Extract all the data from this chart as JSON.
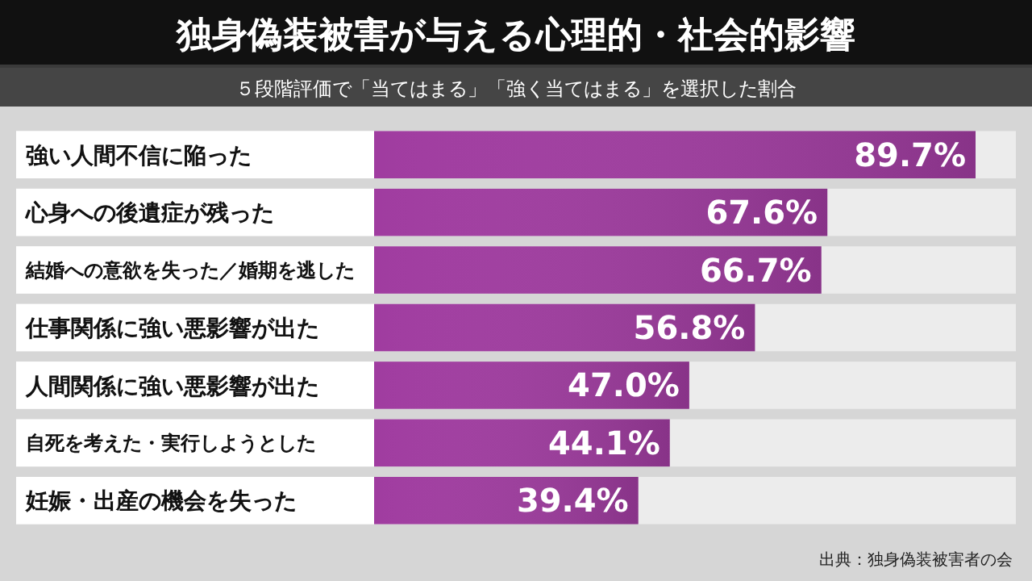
{
  "chart_data": {
    "type": "bar",
    "orientation": "horizontal",
    "title": "独身偽装被害が与える心理的・社会的影響",
    "subtitle": "５段階評価で「当てはまる」「強く当てはまる」を選択した割合",
    "categories": [
      "強い人間不信に陥った",
      "心身への後遺症が残った",
      "結婚への意欲を失った／婚期を逃した",
      "仕事関係に強い悪影響が出た",
      "人間関係に強い悪影響が出た",
      "自死を考えた・実行しようとした",
      "妊娠・出産の機会を失った"
    ],
    "values": [
      89.7,
      67.6,
      66.7,
      56.8,
      47.0,
      44.1,
      39.4
    ],
    "value_labels": [
      "89.7%",
      "67.6%",
      "66.7%",
      "56.8%",
      "47.0%",
      "44.1%",
      "39.4%"
    ],
    "color": "#a03ca0",
    "annotations": [
      "出典：独身偽装被害者の会"
    ]
  }
}
